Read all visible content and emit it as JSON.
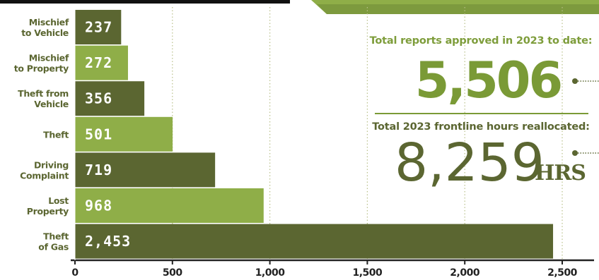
{
  "chart_data": {
    "type": "bar",
    "orientation": "horizontal",
    "categories": [
      [
        "Mischief",
        "to Vehicle"
      ],
      [
        "Mischief",
        "to Property"
      ],
      [
        "Theft from",
        "Vehicle"
      ],
      [
        "Theft"
      ],
      [
        "Driving",
        "Complaint"
      ],
      [
        "Lost",
        "Property"
      ],
      [
        "Theft",
        "of Gas"
      ]
    ],
    "values": [
      237,
      272,
      356,
      501,
      719,
      968,
      2453
    ],
    "value_labels": [
      "237",
      "272",
      "356",
      "501",
      "719",
      "968",
      "2,453"
    ],
    "xlim": [
      0,
      2500
    ],
    "ticks": [
      0,
      500,
      1000,
      1500,
      2000,
      2500
    ],
    "tick_labels": [
      "0",
      "500",
      "1,000",
      "1,500",
      "2,000",
      "2,500"
    ],
    "grid": "vertical dotted",
    "colors": {
      "dark": "#5b6631",
      "light": "#8fae48",
      "axis": "#222222",
      "grid": "#b9c08a"
    }
  },
  "stats": {
    "reports_label": "Total reports approved in 2023 to date:",
    "reports_value": "5,506",
    "hours_label": "Total 2023 frontline hours reallocated:",
    "hours_value": "8,259",
    "hours_unit": "HRS"
  },
  "colors": {
    "accent_green": "#7a9a36",
    "olive": "#5b6631",
    "header_bar": "#111111"
  }
}
